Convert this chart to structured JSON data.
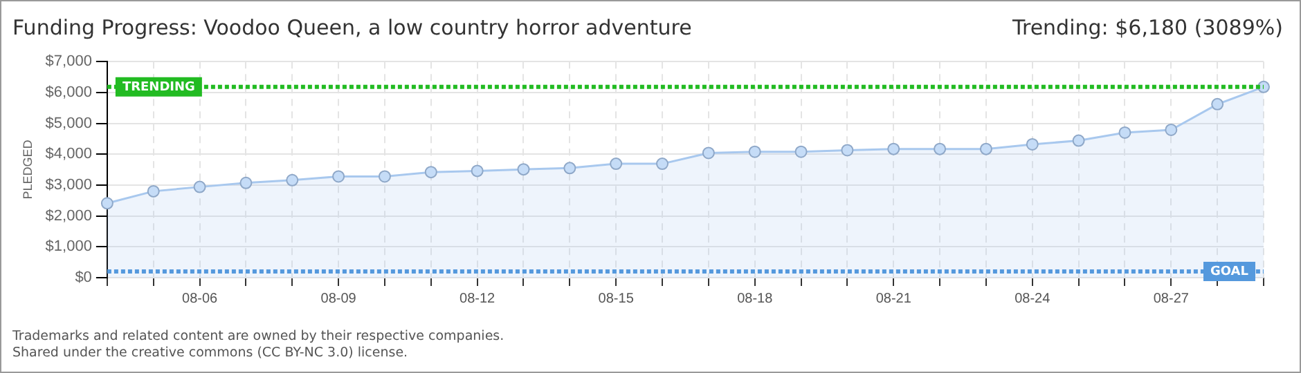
{
  "chart_data": {
    "type": "area",
    "title": "Funding Progress: Voodoo Queen, a low country horror adventure",
    "subtitle": "Trending:  $6,180 (3089%)",
    "ylabel": "PLEDGED",
    "categories": [
      null,
      null,
      "08-06",
      null,
      null,
      "08-09",
      null,
      null,
      "08-12",
      null,
      null,
      "08-15",
      null,
      null,
      "08-18",
      null,
      null,
      "08-21",
      null,
      null,
      "08-24",
      null,
      null,
      "08-27",
      null,
      null
    ],
    "series": [
      {
        "color": "#a8c8ee",
        "values": [
          2410,
          2800,
          2940,
          3070,
          3160,
          3280,
          3280,
          3420,
          3460,
          3510,
          3550,
          3690,
          3690,
          4040,
          4080,
          4080,
          4130,
          4170,
          4170,
          4170,
          4320,
          4440,
          4700,
          4790,
          5620,
          6180
        ]
      }
    ],
    "ylim": [
      0,
      7000
    ],
    "yticks": [
      {
        "value": 0,
        "label": "$0"
      },
      {
        "value": 1000,
        "label": "$1,000"
      },
      {
        "value": 2000,
        "label": "$2,000"
      },
      {
        "value": 3000,
        "label": "$3,000"
      },
      {
        "value": 4000,
        "label": "$4,000"
      },
      {
        "value": 5000,
        "label": "$5,000"
      },
      {
        "value": 6000,
        "label": "$6,000"
      },
      {
        "value": 7000,
        "label": "$7,000"
      }
    ],
    "ref_lines": [
      {
        "axis": "y",
        "value": 6180,
        "label": "TRENDING",
        "color": "#22bb22",
        "line_style": "dotted"
      },
      {
        "axis": "y",
        "value": 200,
        "label": "GOAL",
        "color": "#5599dd",
        "line_style": "dotted"
      }
    ],
    "grid": true,
    "legend": false,
    "marker": "circle",
    "line_style": "solid",
    "annotations": [
      "Trademarks and related content are owned by their respective companies.",
      "Shared under the creative commons (CC BY-NC 3.0) license."
    ]
  }
}
